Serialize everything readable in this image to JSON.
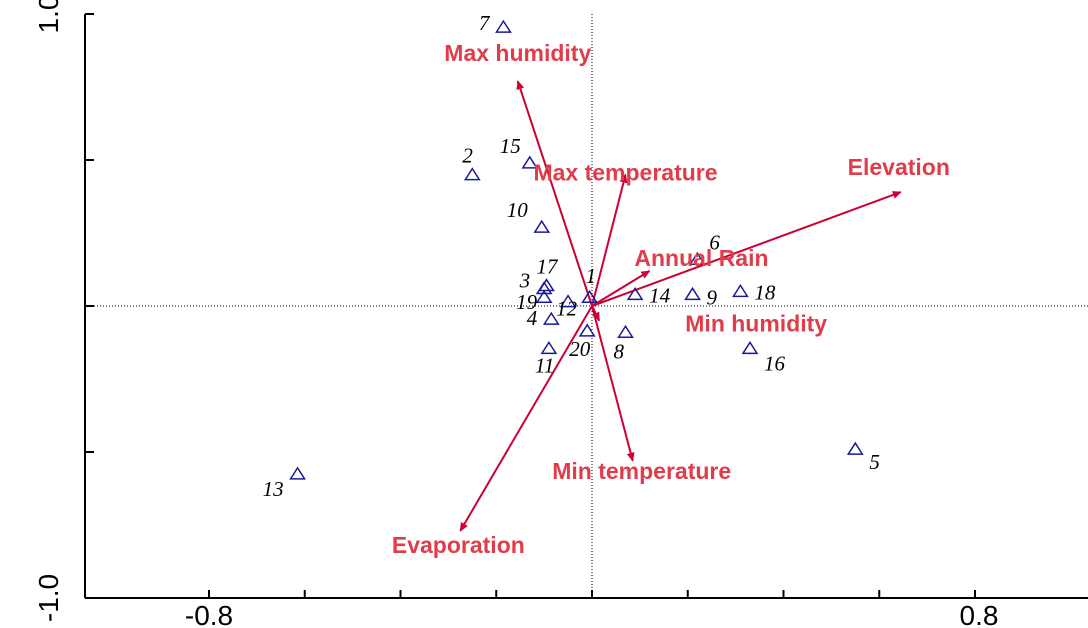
{
  "chart_data": {
    "type": "scatter",
    "title": "",
    "xlabel": "",
    "ylabel": "",
    "xlim": [
      -0.8,
      0.8
    ],
    "ylim": [
      -1.0,
      1.0
    ],
    "x_tick_labels": [
      "-0.8",
      "0.8"
    ],
    "y_tick_labels": [
      "1.0",
      "-1.0"
    ],
    "x_tick_values": [
      -0.8,
      -0.6,
      -0.4,
      -0.2,
      0.0,
      0.2,
      0.4,
      0.6,
      0.8
    ],
    "y_tick_values": [
      1.0,
      0.5,
      0.0,
      -0.5,
      -1.0
    ],
    "colors": {
      "arrow": "#cc0033",
      "arrow_label": "#e03c4a",
      "site_marker": "#1a1a99"
    },
    "sites": [
      {
        "label": "1",
        "x": -0.005,
        "y": 0.03
      },
      {
        "label": "2",
        "x": -0.25,
        "y": 0.45
      },
      {
        "label": "3",
        "x": -0.1,
        "y": 0.06
      },
      {
        "label": "4",
        "x": -0.085,
        "y": -0.045
      },
      {
        "label": "5",
        "x": 0.55,
        "y": -0.49
      },
      {
        "label": "6",
        "x": 0.22,
        "y": 0.16
      },
      {
        "label": "7",
        "x": -0.185,
        "y": 0.955
      },
      {
        "label": "8",
        "x": 0.07,
        "y": -0.09
      },
      {
        "label": "9",
        "x": 0.21,
        "y": 0.04
      },
      {
        "label": "10",
        "x": -0.105,
        "y": 0.27
      },
      {
        "label": "11",
        "x": -0.09,
        "y": -0.145
      },
      {
        "label": "12",
        "x": -0.05,
        "y": 0.015
      },
      {
        "label": "13",
        "x": -0.615,
        "y": -0.575
      },
      {
        "label": "14",
        "x": 0.09,
        "y": 0.04
      },
      {
        "label": "15",
        "x": -0.13,
        "y": 0.49
      },
      {
        "label": "16",
        "x": 0.33,
        "y": -0.145
      },
      {
        "label": "17",
        "x": -0.095,
        "y": 0.07
      },
      {
        "label": "18",
        "x": 0.31,
        "y": 0.05
      },
      {
        "label": "19",
        "x": -0.1,
        "y": 0.03
      },
      {
        "label": "20",
        "x": -0.01,
        "y": -0.085
      }
    ],
    "arrows": [
      {
        "name": "Max humidity",
        "x": -0.155,
        "y": 0.77
      },
      {
        "name": "Max temperature",
        "x": 0.07,
        "y": 0.45
      },
      {
        "name": "Elevation",
        "x": 0.645,
        "y": 0.39
      },
      {
        "name": "Annual Rain",
        "x": 0.12,
        "y": 0.12
      },
      {
        "name": "Min humidity",
        "x": 0.015,
        "y": -0.05
      },
      {
        "name": "Min temperature",
        "x": 0.085,
        "y": -0.53
      },
      {
        "name": "Evaporation",
        "x": -0.275,
        "y": -0.77
      }
    ]
  }
}
